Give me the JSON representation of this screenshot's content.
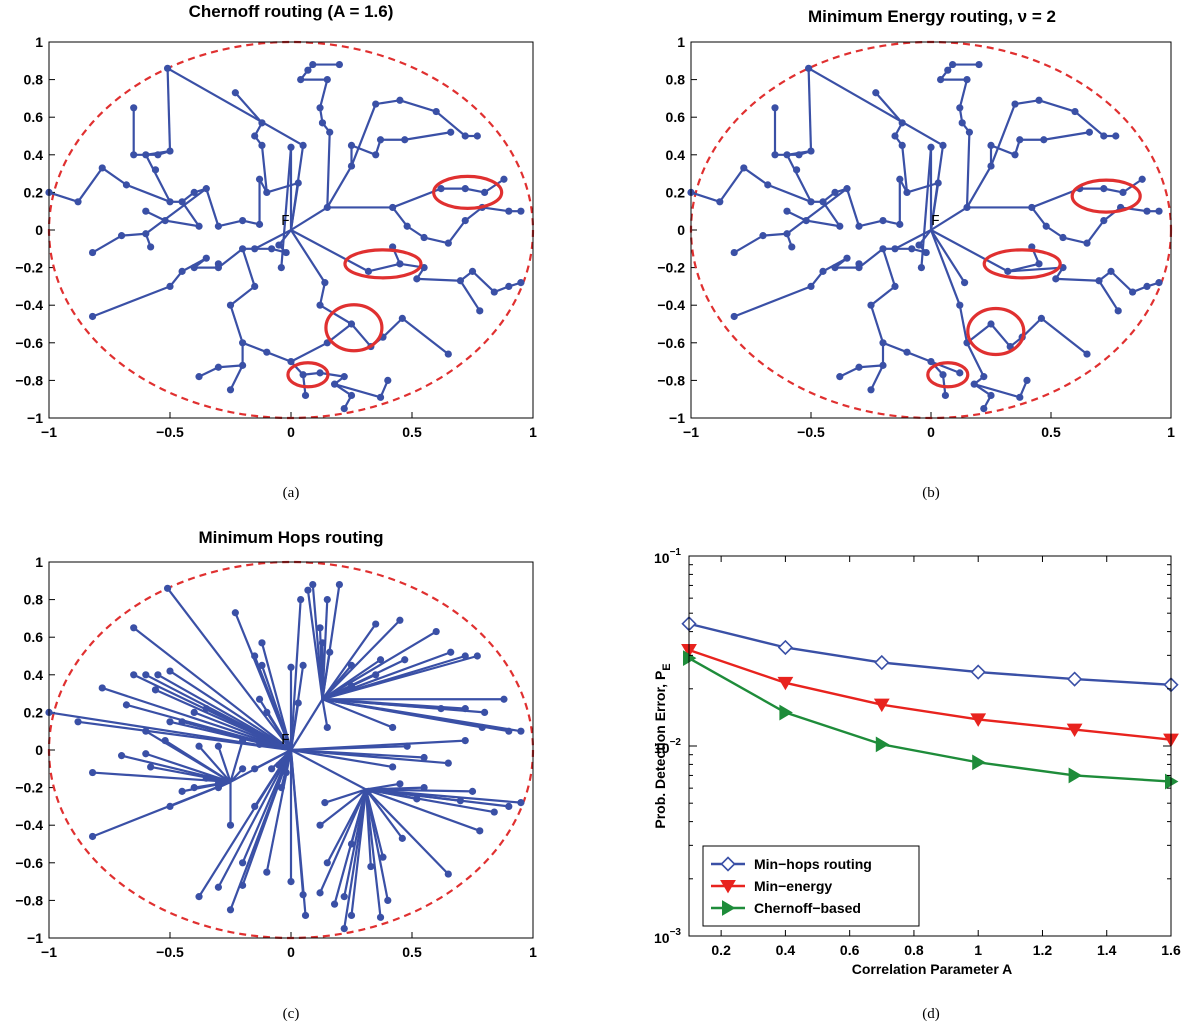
{
  "colors": {
    "tree": "#3a50a6",
    "boundary": "#e03030",
    "highlight": "#e03030",
    "minhops": "#3a50a6",
    "minenergy": "#e8231e",
    "chernoff": "#1e8c3a"
  },
  "panels": [
    {
      "id": "a",
      "title": "Chernoff routing (A = 1.6)",
      "caption": "(a)",
      "fusion_label": "F"
    },
    {
      "id": "b",
      "title": "Minimum Energy routing, ν = 2",
      "caption": "(b)",
      "fusion_label": "F"
    },
    {
      "id": "c",
      "title": "Minimum Hops routing",
      "caption": "(c)",
      "fusion_label": "F"
    }
  ],
  "network_ticks": {
    "x": [
      "−1",
      "−0.5",
      "0",
      "0.5",
      "1"
    ],
    "y": [
      "1",
      "0.8",
      "0.6",
      "0.4",
      "0.2",
      "0",
      "−0.2",
      "−0.4",
      "−0.6",
      "−0.8",
      "−1"
    ]
  },
  "chart_data": {
    "type": "line",
    "caption": "(d)",
    "xlabel": "Correlation Parameter A",
    "ylabel": "Prob. Detection Error,  P",
    "ylabel_sub": "E",
    "xlim": [
      0.1,
      1.6
    ],
    "ylim": [
      0.001,
      0.1
    ],
    "yscale": "log",
    "grid": false,
    "legend_position": "bottom-left",
    "x": [
      0.1,
      0.4,
      0.7,
      1.0,
      1.3,
      1.6
    ],
    "xticks": [
      "0.2",
      "0.4",
      "0.6",
      "0.8",
      "1",
      "1.2",
      "1.4",
      "1.6"
    ],
    "yticks": [
      {
        "base": "10",
        "exp": "−1"
      },
      {
        "base": "10",
        "exp": "−2"
      },
      {
        "base": "10",
        "exp": "−3"
      }
    ],
    "series": [
      {
        "name": "Min−hops routing",
        "marker": "diamond",
        "values": [
          0.044,
          0.033,
          0.0275,
          0.0245,
          0.0225,
          0.021
        ]
      },
      {
        "name": "Min−energy",
        "marker": "triangle-down",
        "values": [
          0.032,
          0.0215,
          0.0165,
          0.0138,
          0.0122,
          0.0108
        ]
      },
      {
        "name": "Chernoff−based",
        "marker": "triangle-right",
        "values": [
          0.029,
          0.015,
          0.0102,
          0.0082,
          0.007,
          0.0065
        ]
      }
    ]
  }
}
